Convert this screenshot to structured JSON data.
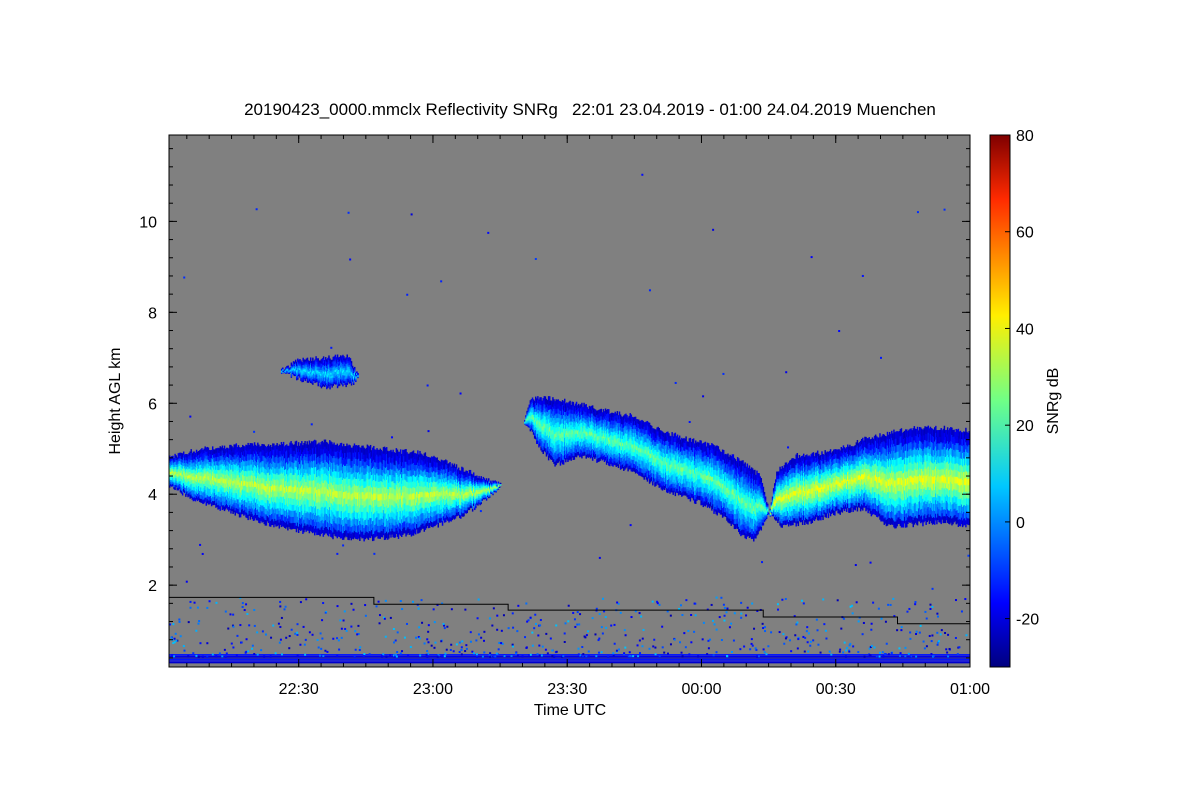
{
  "chart_data": {
    "type": "heatmap",
    "title": "20190423_0000.mmclx Reflectivity SNRg   22:01 23.04.2019 - 01:00 24.04.2019 Muenchen",
    "xlabel": "Time UTC",
    "ylabel": "Height AGL km",
    "colorbar_label": "SNRg dB",
    "x_start_hours": 22.017,
    "x_end_hours": 25.0,
    "xlim_hours": [
      22.017,
      25.0
    ],
    "ylim_km": [
      0.2,
      11.9
    ],
    "xticks": [
      {
        "hours": 22.5,
        "label": "22:30"
      },
      {
        "hours": 23.0,
        "label": "23:00"
      },
      {
        "hours": 23.5,
        "label": "23:30"
      },
      {
        "hours": 24.0,
        "label": "00:00"
      },
      {
        "hours": 24.5,
        "label": "00:30"
      },
      {
        "hours": 25.0,
        "label": "01:00"
      }
    ],
    "yticks": [
      {
        "km": 2,
        "label": "2"
      },
      {
        "km": 4,
        "label": "4"
      },
      {
        "km": 6,
        "label": "6"
      },
      {
        "km": 8,
        "label": "8"
      },
      {
        "km": 10,
        "label": "10"
      }
    ],
    "colorbar_range_db": [
      -30,
      80
    ],
    "colorbar_ticks": [
      {
        "db": -20,
        "label": "-20"
      },
      {
        "db": 0,
        "label": "0"
      },
      {
        "db": 20,
        "label": "20"
      },
      {
        "db": 40,
        "label": "40"
      },
      {
        "db": 60,
        "label": "60"
      },
      {
        "db": 80,
        "label": "80"
      }
    ],
    "colormap": "jet",
    "background_color": "#808080",
    "cloud_layers": [
      {
        "name": "main-cloud-west",
        "bottom_km": [
          [
            22.017,
            4.2
          ],
          [
            22.1,
            3.9
          ],
          [
            22.2,
            3.7
          ],
          [
            22.35,
            3.4
          ],
          [
            22.5,
            3.2
          ],
          [
            22.7,
            3.0
          ],
          [
            22.9,
            3.1
          ],
          [
            23.0,
            3.3
          ],
          [
            23.1,
            3.5
          ],
          [
            23.2,
            3.9
          ],
          [
            23.25,
            4.2
          ]
        ],
        "top_km": [
          [
            22.017,
            4.8
          ],
          [
            22.1,
            4.95
          ],
          [
            22.2,
            5.05
          ],
          [
            22.4,
            5.1
          ],
          [
            22.6,
            5.15
          ],
          [
            22.8,
            5.0
          ],
          [
            22.95,
            4.9
          ],
          [
            23.05,
            4.7
          ],
          [
            23.15,
            4.45
          ],
          [
            23.25,
            4.2
          ]
        ],
        "core_db": 32
      },
      {
        "name": "upper-cloud-patch",
        "bottom_km": [
          [
            22.43,
            6.7
          ],
          [
            22.5,
            6.55
          ],
          [
            22.6,
            6.35
          ],
          [
            22.7,
            6.45
          ],
          [
            22.72,
            6.6
          ]
        ],
        "top_km": [
          [
            22.43,
            6.7
          ],
          [
            22.5,
            6.95
          ],
          [
            22.6,
            7.0
          ],
          [
            22.68,
            7.05
          ],
          [
            22.72,
            6.6
          ]
        ],
        "core_db": 8
      },
      {
        "name": "main-cloud-east-a",
        "bottom_km": [
          [
            23.34,
            5.6
          ],
          [
            23.4,
            5.0
          ],
          [
            23.45,
            4.65
          ],
          [
            23.55,
            4.85
          ],
          [
            23.7,
            4.6
          ],
          [
            23.8,
            4.3
          ],
          [
            23.9,
            4.0
          ],
          [
            24.0,
            3.8
          ],
          [
            24.08,
            3.5
          ],
          [
            24.15,
            3.1
          ],
          [
            24.2,
            3.0
          ],
          [
            24.25,
            3.6
          ]
        ],
        "top_km": [
          [
            23.34,
            5.6
          ],
          [
            23.36,
            6.1
          ],
          [
            23.45,
            6.1
          ],
          [
            23.6,
            5.9
          ],
          [
            23.75,
            5.7
          ],
          [
            23.85,
            5.4
          ],
          [
            23.95,
            5.2
          ],
          [
            24.05,
            5.05
          ],
          [
            24.15,
            4.7
          ],
          [
            24.22,
            4.4
          ],
          [
            24.25,
            3.6
          ]
        ],
        "core_db": 22
      },
      {
        "name": "main-cloud-east-b",
        "bottom_km": [
          [
            24.25,
            3.6
          ],
          [
            24.3,
            3.3
          ],
          [
            24.4,
            3.4
          ],
          [
            24.5,
            3.6
          ],
          [
            24.6,
            3.7
          ],
          [
            24.7,
            3.3
          ],
          [
            24.8,
            3.35
          ],
          [
            24.9,
            3.4
          ],
          [
            25.0,
            3.3
          ]
        ],
        "top_km": [
          [
            24.25,
            3.6
          ],
          [
            24.28,
            4.5
          ],
          [
            24.35,
            4.85
          ],
          [
            24.5,
            4.95
          ],
          [
            24.6,
            5.2
          ],
          [
            24.7,
            5.35
          ],
          [
            24.8,
            5.45
          ],
          [
            24.9,
            5.45
          ],
          [
            25.0,
            5.4
          ]
        ],
        "core_db": 36
      }
    ],
    "height_line_km": [
      {
        "from_hours": 22.017,
        "to_hours": 22.78,
        "km": 1.73
      },
      {
        "from_hours": 22.78,
        "to_hours": 23.28,
        "km": 1.58
      },
      {
        "from_hours": 23.28,
        "to_hours": 24.23,
        "km": 1.45
      },
      {
        "from_hours": 24.23,
        "to_hours": 24.73,
        "km": 1.3
      },
      {
        "from_hours": 24.73,
        "to_hours": 25.0,
        "km": 1.15
      }
    ]
  }
}
